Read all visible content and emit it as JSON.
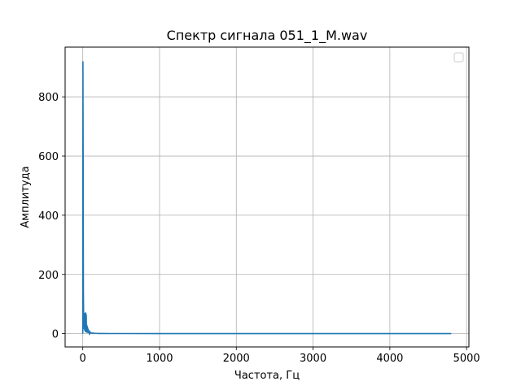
{
  "chart_data": {
    "type": "line",
    "title": "Спектр сигнала 051_1_M.wav",
    "xlabel": "Частота, Гц",
    "ylabel": "Амплитуда",
    "xlim": [
      -230,
      5030
    ],
    "ylim": [
      -45,
      968
    ],
    "xticks": [
      0,
      1000,
      2000,
      3000,
      4000,
      5000
    ],
    "xtick_labels": [
      "0",
      "1000",
      "2000",
      "3000",
      "4000",
      "5000"
    ],
    "yticks": [
      0,
      200,
      400,
      600,
      800
    ],
    "ytick_labels": [
      "0",
      "200",
      "400",
      "600",
      "800"
    ],
    "grid": true,
    "legend": {
      "placement": "top-right",
      "entries": []
    },
    "colors": {
      "line": "#1f77b4",
      "grid": "#b0b0b0",
      "axes": "#000000"
    },
    "series": [
      {
        "x": [
          0,
          2,
          5,
          8,
          12,
          18,
          22,
          25,
          30,
          34,
          38,
          42,
          45,
          48,
          52,
          55,
          58,
          62,
          65,
          68,
          72,
          75,
          80,
          85,
          90,
          95,
          100,
          110,
          120,
          130,
          150,
          170,
          200,
          260,
          350,
          500,
          1000,
          1500,
          2000,
          2500,
          3000,
          3500,
          4000,
          4500,
          4800
        ],
        "y": [
          0,
          920,
          600,
          150,
          40,
          15,
          70,
          10,
          68,
          5,
          72,
          8,
          65,
          4,
          30,
          3,
          25,
          6,
          20,
          2,
          15,
          3,
          8,
          2,
          6,
          1,
          4,
          3,
          1,
          2,
          1,
          1,
          0.5,
          0.5,
          0.3,
          0.3,
          0.2,
          0.2,
          0.2,
          0.2,
          0.2,
          0.2,
          0.2,
          0.2,
          0.2
        ]
      }
    ]
  }
}
